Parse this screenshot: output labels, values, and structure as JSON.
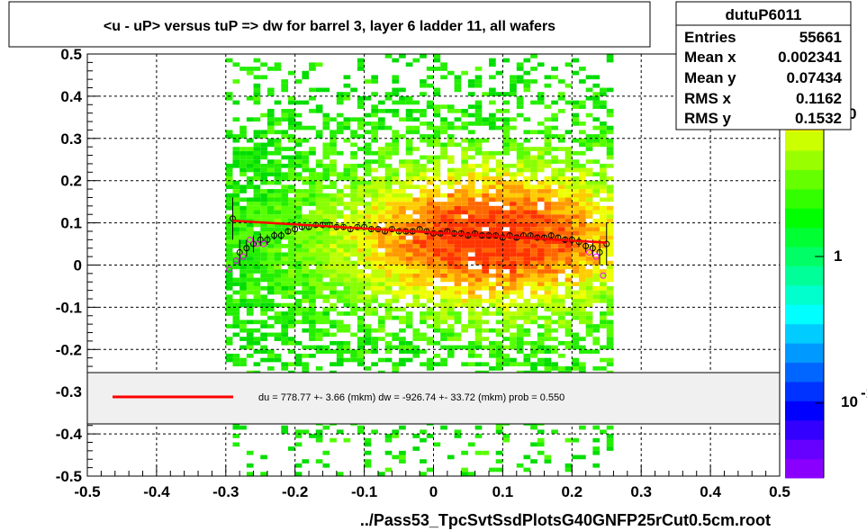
{
  "chart_data": {
    "type": "scatter",
    "title": "<u - uP>       versus  tuP =>  dw for barrel 3, layer 6 ladder 11, all wafers",
    "xlabel": "../Pass53_TpcSvtSsdPlotsG40GNFP25rCut0.5cm.root",
    "ylabel": "",
    "xlim": [
      -0.5,
      0.5
    ],
    "ylim": [
      -0.5,
      0.5
    ],
    "x_ticks": [
      "-0.5",
      "-0.4",
      "-0.3",
      "-0.2",
      "-0.1",
      "0",
      "0.1",
      "0.2",
      "0.3",
      "0.4",
      "0.5"
    ],
    "y_ticks": [
      "-0.5",
      "-0.4",
      "-0.3",
      "-0.2",
      "-0.1",
      "0",
      "0.1",
      "0.2",
      "0.3",
      "0.4",
      "0.5"
    ],
    "x_tick_values": [
      -0.5,
      -0.4,
      -0.3,
      -0.2,
      -0.1,
      0,
      0.1,
      0.2,
      0.3,
      0.4,
      0.5
    ],
    "y_tick_values": [
      -0.5,
      -0.4,
      -0.3,
      -0.2,
      -0.1,
      0,
      0.1,
      0.2,
      0.3,
      0.4,
      0.5
    ],
    "grid": true,
    "colorbar": {
      "labels": [
        "1",
        "10"
      ],
      "label_superscript": "-1",
      "label_partial_top": "0",
      "colors": [
        "#8a00ff",
        "#6600ff",
        "#3300ff",
        "#0000ff",
        "#0033ff",
        "#0066ff",
        "#0099ff",
        "#00ccff",
        "#00ffff",
        "#00ffcc",
        "#00ff99",
        "#00ff66",
        "#00ff33",
        "#00ff00",
        "#33ff00",
        "#66ff00",
        "#99ff00",
        "#ccff00",
        "#ffff00",
        "#ffcc00",
        "#ff9900",
        "#ff6600"
      ]
    },
    "stats": {
      "name": "dutuP6011",
      "rows": [
        {
          "label": "Entries",
          "value": "55661"
        },
        {
          "label": "Mean x",
          "value": "0.002341"
        },
        {
          "label": "Mean y",
          "value": "0.07434"
        },
        {
          "label": "RMS x",
          "value": "0.1162"
        },
        {
          "label": "RMS y",
          "value": "0.1532"
        }
      ]
    },
    "legend": {
      "text": "du =  778.77 +-  3.66 (mkm) dw = -926.74 +- 33.72 (mkm) prob = 0.550",
      "line_color": "#ff0000"
    },
    "fit_line": {
      "x": [
        -0.29,
        0.25
      ],
      "y": [
        0.105,
        0.053
      ],
      "color": "#ff0000"
    },
    "profile_black": {
      "x": [
        -0.29,
        -0.28,
        -0.27,
        -0.26,
        -0.25,
        -0.24,
        -0.23,
        -0.22,
        -0.21,
        -0.2,
        -0.19,
        -0.18,
        -0.17,
        -0.16,
        -0.15,
        -0.14,
        -0.13,
        -0.12,
        -0.11,
        -0.1,
        -0.09,
        -0.08,
        -0.07,
        -0.06,
        -0.05,
        -0.04,
        -0.03,
        -0.02,
        -0.01,
        0.0,
        0.01,
        0.02,
        0.03,
        0.04,
        0.05,
        0.06,
        0.07,
        0.08,
        0.09,
        0.1,
        0.11,
        0.12,
        0.13,
        0.14,
        0.15,
        0.16,
        0.17,
        0.18,
        0.19,
        0.2,
        0.21,
        0.22,
        0.23,
        0.24,
        0.25
      ],
      "y": [
        0.11,
        0.03,
        0.04,
        0.05,
        0.06,
        0.06,
        0.07,
        0.07,
        0.08,
        0.085,
        0.09,
        0.09,
        0.095,
        0.095,
        0.095,
        0.09,
        0.09,
        0.085,
        0.09,
        0.09,
        0.085,
        0.085,
        0.08,
        0.085,
        0.08,
        0.08,
        0.08,
        0.085,
        0.08,
        0.075,
        0.075,
        0.08,
        0.075,
        0.075,
        0.07,
        0.075,
        0.07,
        0.07,
        0.07,
        0.065,
        0.07,
        0.065,
        0.07,
        0.07,
        0.065,
        0.065,
        0.07,
        0.065,
        0.06,
        0.06,
        0.055,
        0.045,
        0.04,
        0.03,
        0.05
      ],
      "err": [
        0.05,
        0.03,
        0.02,
        0.02,
        0.015,
        0.012,
        0.01,
        0.01,
        0.008,
        0.008,
        0.007,
        0.007,
        0.006,
        0.006,
        0.006,
        0.006,
        0.005,
        0.005,
        0.005,
        0.005,
        0.005,
        0.005,
        0.005,
        0.005,
        0.005,
        0.005,
        0.005,
        0.005,
        0.005,
        0.005,
        0.005,
        0.005,
        0.005,
        0.005,
        0.005,
        0.005,
        0.005,
        0.005,
        0.005,
        0.005,
        0.005,
        0.005,
        0.005,
        0.005,
        0.006,
        0.006,
        0.006,
        0.007,
        0.008,
        0.01,
        0.012,
        0.015,
        0.02,
        0.03,
        0.05
      ]
    },
    "profile_magenta": {
      "x": [
        -0.295,
        -0.285,
        -0.275,
        -0.265,
        -0.255,
        -0.245,
        0.225,
        0.235,
        0.245
      ],
      "y": [
        -0.01,
        0.01,
        0.02,
        0.06,
        0.05,
        0.05,
        0.03,
        0.02,
        -0.025
      ]
    }
  }
}
